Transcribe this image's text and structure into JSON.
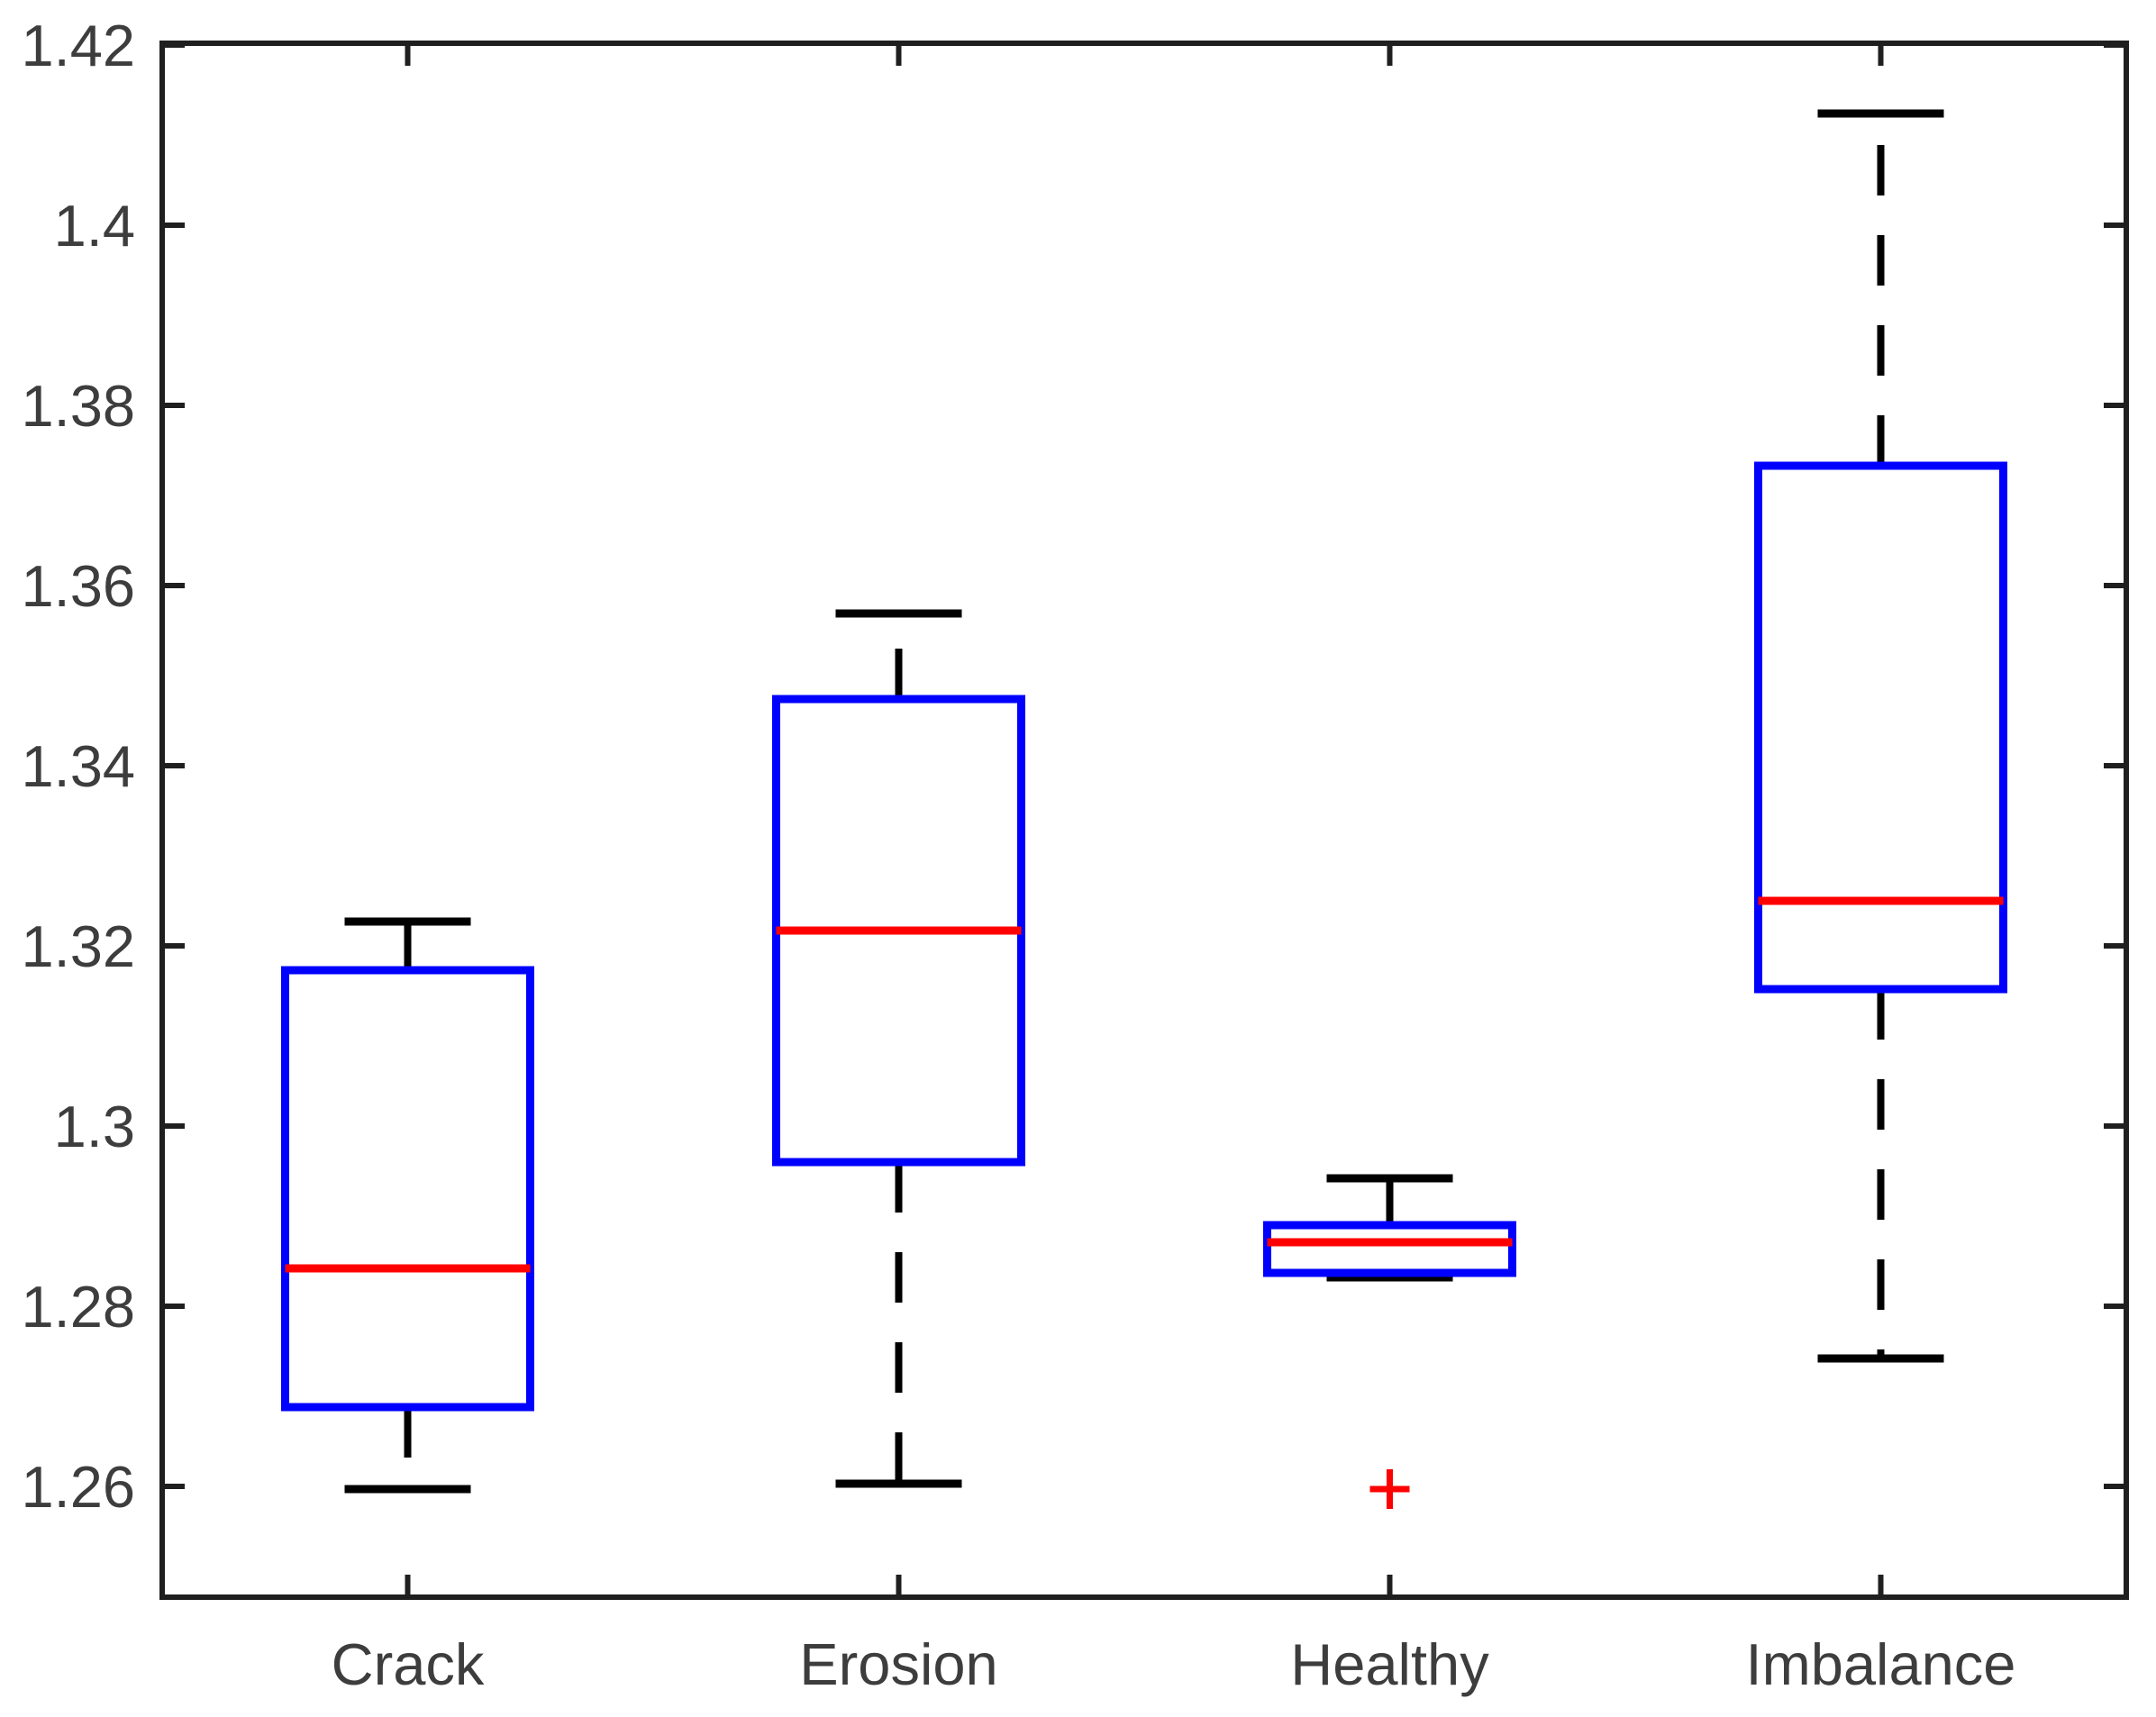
{
  "figure": {
    "background": "#ffffff"
  },
  "chart_data": {
    "type": "box",
    "title": "",
    "xlabel": "",
    "ylabel": "",
    "categories": [
      "Crack",
      "Erosion",
      "Healthy",
      "Imbalance"
    ],
    "series": [
      {
        "name": "Crack",
        "whisker_low": 1.2597,
        "q1": 1.2688,
        "median": 1.2842,
        "q3": 1.3173,
        "whisker_high": 1.3227,
        "outliers": []
      },
      {
        "name": "Erosion",
        "whisker_low": 1.2603,
        "q1": 1.296,
        "median": 1.3217,
        "q3": 1.3474,
        "whisker_high": 1.3569,
        "outliers": []
      },
      {
        "name": "Healthy",
        "whisker_low": 1.2832,
        "q1": 1.2837,
        "median": 1.2871,
        "q3": 1.289,
        "whisker_high": 1.2942,
        "outliers": [
          1.2597
        ]
      },
      {
        "name": "Imbalance",
        "whisker_low": 1.2742,
        "q1": 1.3152,
        "median": 1.325,
        "q3": 1.3733,
        "whisker_high": 1.4124,
        "outliers": []
      }
    ],
    "ylim": [
      1.2477,
      1.4202
    ],
    "xlim_categories": [
      0.5,
      4.5
    ],
    "yticks": [
      {
        "value": 1.26,
        "label": "1.26"
      },
      {
        "value": 1.28,
        "label": "1.28"
      },
      {
        "value": 1.3,
        "label": "1.3"
      },
      {
        "value": 1.32,
        "label": "1.32"
      },
      {
        "value": 1.34,
        "label": "1.34"
      },
      {
        "value": 1.36,
        "label": "1.36"
      },
      {
        "value": 1.38,
        "label": "1.38"
      },
      {
        "value": 1.4,
        "label": "1.4"
      },
      {
        "value": 1.42,
        "label": "1.42"
      }
    ],
    "grid": false,
    "legend_position": "none",
    "outlier_marker": "+",
    "colors": {
      "box": "#0000ff",
      "median": "#ff0000",
      "whisker": "#000000",
      "cap": "#000000",
      "outlier": "#ff0000",
      "axis": "#1f1f1f",
      "tick_label": "#3d3d3d",
      "background": "#ffffff"
    }
  }
}
